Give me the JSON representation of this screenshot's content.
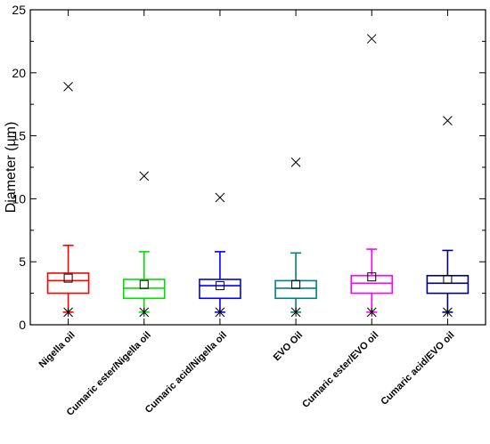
{
  "chart_data": {
    "type": "box",
    "ylabel": "Diameter (μm)",
    "ylim": [
      0,
      25
    ],
    "yticks": [
      0,
      5,
      10,
      15,
      20,
      25
    ],
    "grid": false,
    "categories": [
      "Nigella oil",
      "Cumaric ester/Nigella oil",
      "Cumaric acid/Nigella oil",
      "EVO  Oil",
      "Cumaric ester/EVO oil",
      "Cumaric acid/EVO oil"
    ],
    "colors": [
      "#ff0000",
      "#00e000",
      "#0000ff",
      "#008080",
      "#ff00ff",
      "#000080"
    ],
    "boxes": [
      {
        "whisker_low": 1.0,
        "q1": 2.5,
        "median": 3.5,
        "q3": 4.1,
        "whisker_high": 6.3,
        "mean": 3.7,
        "min": 1.0,
        "max": 18.9
      },
      {
        "whisker_low": 1.0,
        "q1": 2.1,
        "median": 2.9,
        "q3": 3.6,
        "whisker_high": 5.8,
        "mean": 3.2,
        "min": 1.0,
        "max": 11.8
      },
      {
        "whisker_low": 1.0,
        "q1": 2.1,
        "median": 3.1,
        "q3": 3.6,
        "whisker_high": 5.8,
        "mean": 3.1,
        "min": 1.0,
        "max": 10.1
      },
      {
        "whisker_low": 1.0,
        "q1": 2.1,
        "median": 2.9,
        "q3": 3.5,
        "whisker_high": 5.7,
        "mean": 3.2,
        "min": 1.0,
        "max": 12.9
      },
      {
        "whisker_low": 1.0,
        "q1": 2.5,
        "median": 3.3,
        "q3": 3.9,
        "whisker_high": 6.0,
        "mean": 3.8,
        "min": 1.0,
        "max": 22.7
      },
      {
        "whisker_low": 1.0,
        "q1": 2.5,
        "median": 3.3,
        "q3": 3.9,
        "whisker_high": 5.9,
        "mean": 3.6,
        "min": 1.0,
        "max": 16.2
      }
    ]
  }
}
